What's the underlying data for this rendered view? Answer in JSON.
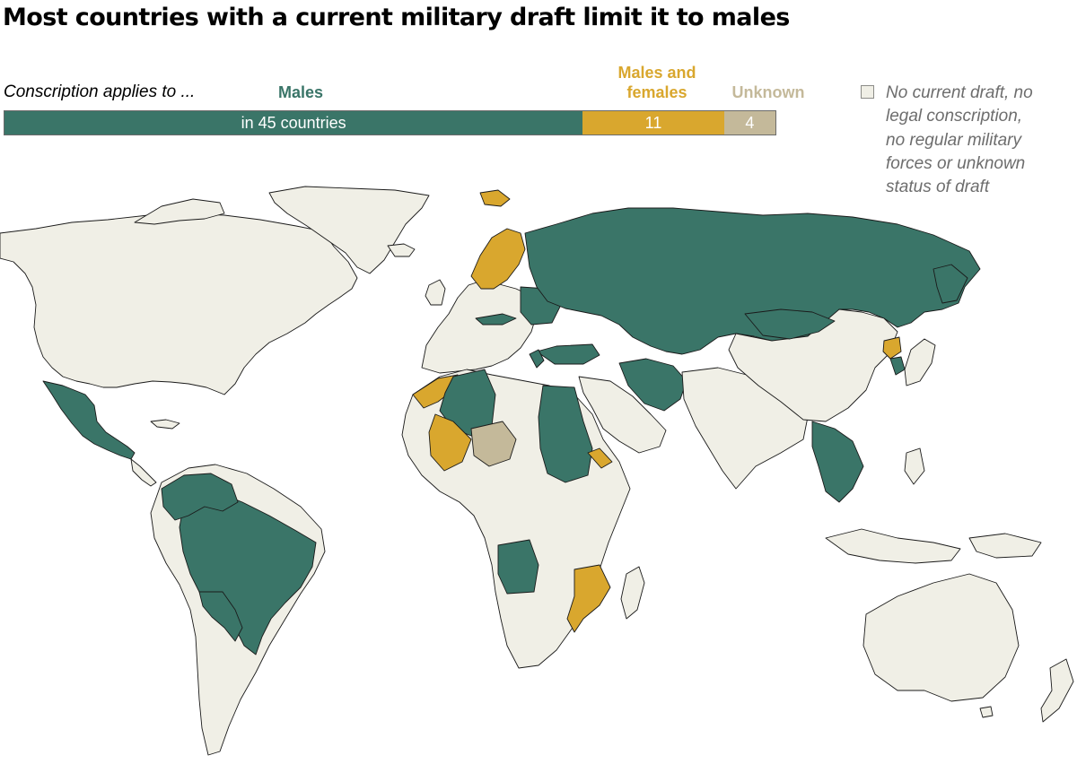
{
  "title": "Most countries with a current military draft limit it to males",
  "bar": {
    "intro": "Conscription applies to ...",
    "segments": [
      {
        "key": "males",
        "label": "Males",
        "value": 45,
        "display": "in 45 countries",
        "color": "#3a7568"
      },
      {
        "key": "both",
        "label_line1": "Males and",
        "label_line2": "females",
        "value": 11,
        "display": "11",
        "color": "#d9a72e"
      },
      {
        "key": "unknown",
        "label": "Unknown",
        "value": 4,
        "display": "4",
        "color": "#c4b99a"
      }
    ]
  },
  "legend": {
    "other_lines": [
      "No current draft, no",
      "legal conscription,",
      "no regular military",
      "forces or unknown",
      "status of draft"
    ],
    "other_color": "#f0efe6"
  },
  "map_colors": {
    "land": "#f0efe6",
    "males": "#3a7568",
    "both": "#d9a72e",
    "unknown": "#c4b99a",
    "border": "#1a1a1a"
  }
}
